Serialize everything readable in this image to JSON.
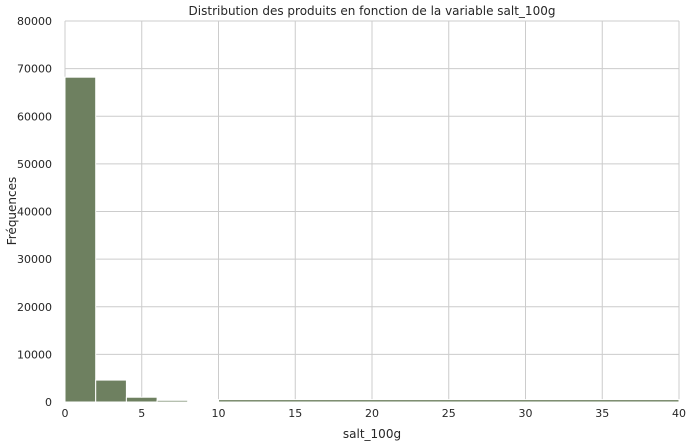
{
  "chart_data": {
    "type": "bar",
    "subtype": "histogram",
    "title": "Distribution des produits en fonction de la variable salt_100g",
    "xlabel": "salt_100g",
    "ylabel": "Fréquences",
    "xlim": [
      0,
      40
    ],
    "ylim": [
      0,
      80000
    ],
    "xticks": [
      0,
      5,
      10,
      15,
      20,
      25,
      30,
      35,
      40
    ],
    "yticks": [
      0,
      10000,
      20000,
      30000,
      40000,
      50000,
      60000,
      70000,
      80000
    ],
    "grid": true,
    "bar_color": "#6e8060",
    "bins": [
      {
        "x0": 0,
        "x1": 2,
        "value": 68200
      },
      {
        "x0": 2,
        "x1": 4,
        "value": 4600
      },
      {
        "x0": 4,
        "x1": 6,
        "value": 1000
      },
      {
        "x0": 6,
        "x1": 8,
        "value": 350
      },
      {
        "x0": 8,
        "x1": 10,
        "value": 150
      },
      {
        "x0": 10,
        "x1": 40,
        "value": 500
      }
    ]
  }
}
